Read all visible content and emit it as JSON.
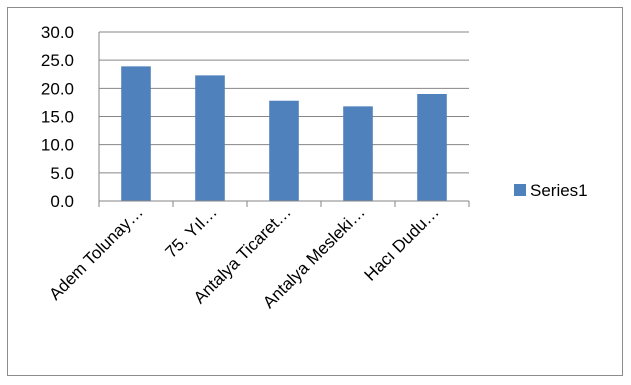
{
  "chart_data": {
    "type": "bar",
    "categories": [
      "Adem Tolunay…",
      "75. Yıl…",
      "Antalya Ticaret…",
      "Antalya Mesleki…",
      "Hacı Dudu…"
    ],
    "series": [
      {
        "name": "Series1",
        "values": [
          23.9,
          22.3,
          17.8,
          16.8,
          19.0
        ],
        "color": "#4f81bd"
      }
    ],
    "ylim": [
      0,
      30
    ],
    "yticks": [
      "0.0",
      "5.0",
      "10.0",
      "15.0",
      "20.0",
      "25.0",
      "30.0"
    ],
    "ytick_values": [
      0,
      5,
      10,
      15,
      20,
      25,
      30
    ],
    "grid": true,
    "legend": "right",
    "title": "",
    "xlabel": "",
    "ylabel": ""
  }
}
